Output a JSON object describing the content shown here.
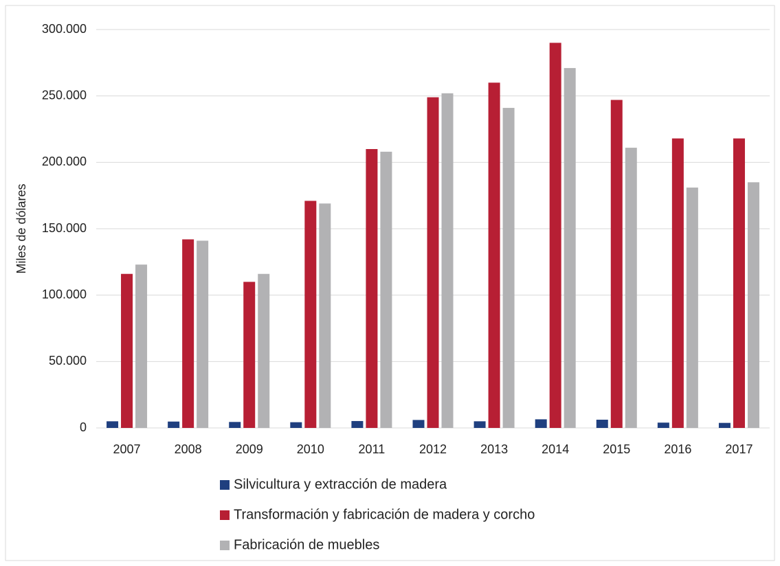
{
  "chart_data": {
    "type": "bar",
    "y_label": "Miles de dólares",
    "categories": [
      "2007",
      "2008",
      "2009",
      "2010",
      "2011",
      "2012",
      "2013",
      "2014",
      "2015",
      "2016",
      "2017"
    ],
    "series": [
      {
        "name": "Silvicultura y extracción de madera",
        "color": "#1f3f7f",
        "values": [
          5000,
          4800,
          4500,
          4300,
          5200,
          6000,
          5000,
          6500,
          6200,
          4000,
          3800
        ]
      },
      {
        "name": "Transformación y fabricación de madera y corcho",
        "color": "#b71f34",
        "values": [
          116000,
          142000,
          110000,
          171000,
          210000,
          249000,
          260000,
          290000,
          247000,
          218000,
          218000
        ]
      },
      {
        "name": "Fabricación de muebles",
        "color": "#b2b2b4",
        "values": [
          123000,
          141000,
          116000,
          169000,
          208000,
          252000,
          241000,
          271000,
          211000,
          181000,
          185000
        ]
      }
    ],
    "ylim": [
      0,
      300000
    ],
    "yticks": [
      0,
      {
        "value": 50000,
        "label": "50.000"
      },
      {
        "value": 100000,
        "label": "100.000"
      },
      {
        "value": 150000,
        "label": "150.000"
      },
      {
        "value": 200000,
        "label": "200.000"
      },
      {
        "value": 250000,
        "label": "250.000"
      },
      {
        "value": 300000,
        "label": "300.000"
      }
    ],
    "grid": true
  }
}
